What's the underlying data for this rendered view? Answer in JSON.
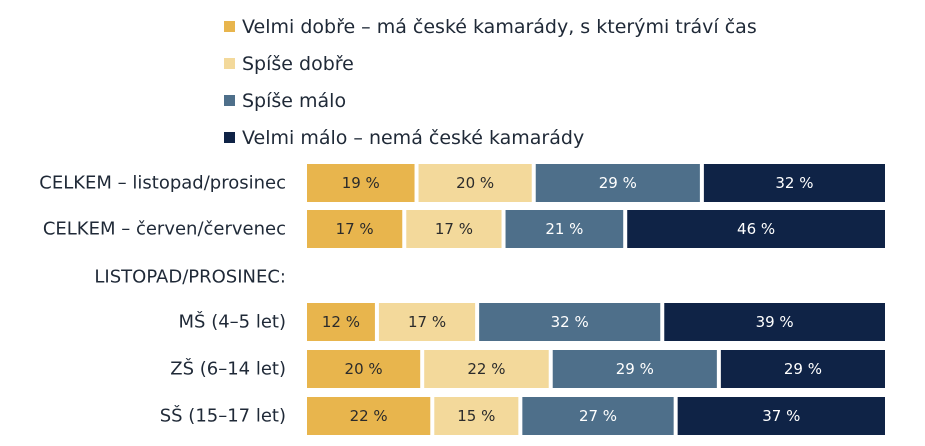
{
  "chart_data": {
    "type": "bar",
    "orientation": "horizontal",
    "stacked": true,
    "normalized": true,
    "legend_position": "top",
    "grid": false,
    "series": [
      {
        "name": "Velmi dobře – má české kamarády, s kterými tráví čas",
        "color": "#E8B54D",
        "text_color": "#2b2b2b"
      },
      {
        "name": "Spíše dobře",
        "color": "#F3D99B",
        "text_color": "#2b2b2b"
      },
      {
        "name": "Spíše málo",
        "color": "#4E6F8A",
        "text_color": "#ffffff"
      },
      {
        "name": "Velmi málo – nemá české kamarády",
        "color": "#0F2346",
        "text_color": "#ffffff"
      }
    ],
    "rows": [
      {
        "label": "CELKEM – listopad/prosinec",
        "values": [
          19,
          20,
          29,
          32
        ],
        "value_labels": [
          "19 %",
          "20 %",
          "29 %",
          "32 %"
        ]
      },
      {
        "label": "CELKEM – červen/červenec",
        "values": [
          17,
          17,
          21,
          46
        ],
        "value_labels": [
          "17 %",
          "17 %",
          "21 %",
          "46 %"
        ]
      },
      {
        "label": "LISTOPAD/PROSINEC:",
        "header": true,
        "values": [],
        "value_labels": []
      },
      {
        "label": "MŠ (4–5 let)",
        "values": [
          12,
          17,
          32,
          39
        ],
        "value_labels": [
          "12 %",
          "17 %",
          "32 %",
          "39 %"
        ]
      },
      {
        "label": "ZŠ (6–14 let)",
        "values": [
          20,
          22,
          29,
          29
        ],
        "value_labels": [
          "20 %",
          "22 %",
          "29 %",
          "29 %"
        ]
      },
      {
        "label": "SŠ (15–17 let)",
        "values": [
          22,
          15,
          27,
          37
        ],
        "value_labels": [
          "22 %",
          "15 %",
          "27 %",
          "37 %"
        ]
      }
    ]
  }
}
